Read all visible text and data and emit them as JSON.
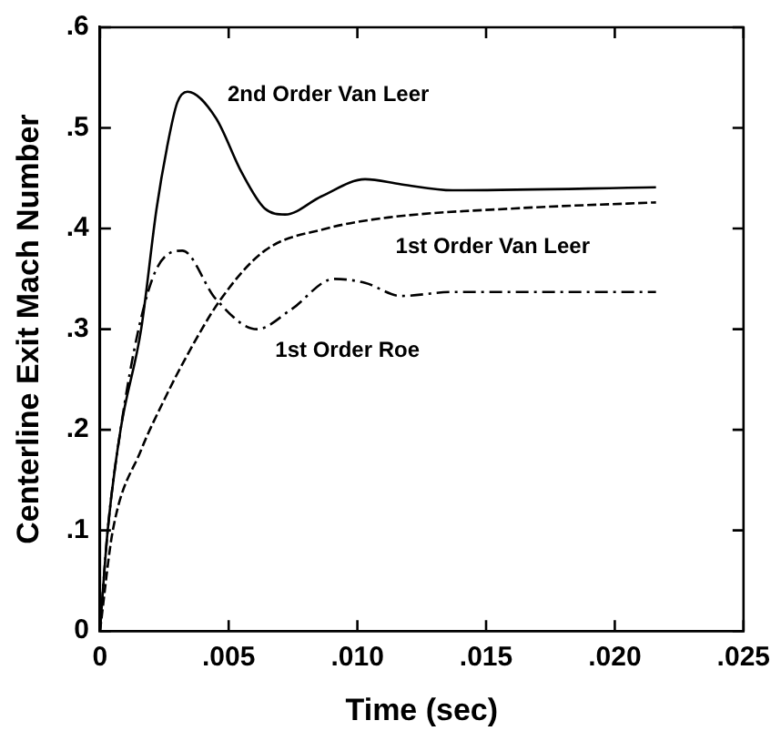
{
  "chart_data": {
    "type": "line",
    "xlabel": "Time (sec)",
    "ylabel": "Centerline Exit Mach Number",
    "xlim": [
      0,
      0.025
    ],
    "ylim": [
      0,
      0.6
    ],
    "xticks": [
      0,
      {
        "value": 0.005,
        "label": ".005"
      },
      {
        "value": 0.01,
        "label": ".010"
      },
      {
        "value": 0.015,
        "label": ".015"
      },
      {
        "value": 0.02,
        "label": ".020"
      },
      {
        "value": 0.025,
        "label": ".025"
      }
    ],
    "yticks": [
      0,
      {
        "value": 0.1,
        "label": ".1"
      },
      {
        "value": 0.2,
        "label": ".2"
      },
      {
        "value": 0.3,
        "label": ".3"
      },
      {
        "value": 0.4,
        "label": ".4"
      },
      {
        "value": 0.5,
        "label": ".5"
      },
      {
        "value": 0.6,
        "label": ".6"
      }
    ],
    "legend": false,
    "marker": "none",
    "series": [
      {
        "name": "2nd Order Van Leer",
        "color": "#000000",
        "line_style": "solid",
        "x": [
          0,
          0.0003,
          0.0008,
          0.0016,
          0.0022,
          0.0026,
          0.003,
          0.0034,
          0.0045,
          0.0055,
          0.0064,
          0.0072,
          0.0086,
          0.0103,
          0.0117,
          0.0137,
          0.0216
        ],
        "values": [
          0,
          0.1,
          0.2,
          0.3,
          0.42,
          0.48,
          0.525,
          0.536,
          0.51,
          0.456,
          0.42,
          0.414,
          0.432,
          0.449,
          0.444,
          0.438,
          0.441
        ]
      },
      {
        "name": "1st Order Van Leer",
        "color": "#000000",
        "line_style": "dashed",
        "x": [
          0,
          0.0005,
          0.0016,
          0.0025,
          0.0033,
          0.0047,
          0.0064,
          0.0088,
          0.0112,
          0.0161,
          0.0216
        ],
        "values": [
          0,
          0.1,
          0.18,
          0.23,
          0.27,
          0.33,
          0.378,
          0.4,
          0.411,
          0.42,
          0.426
        ]
      },
      {
        "name": "1st Order Roe",
        "color": "#000000",
        "line_style": "dashdot",
        "x": [
          0,
          0.0003,
          0.0008,
          0.0015,
          0.0022,
          0.0032,
          0.0045,
          0.0061,
          0.0074,
          0.0091,
          0.0103,
          0.0117,
          0.0137,
          0.0216
        ],
        "values": [
          0,
          0.1,
          0.2,
          0.3,
          0.36,
          0.378,
          0.33,
          0.3,
          0.319,
          0.35,
          0.346,
          0.333,
          0.337,
          0.337
        ]
      }
    ]
  }
}
